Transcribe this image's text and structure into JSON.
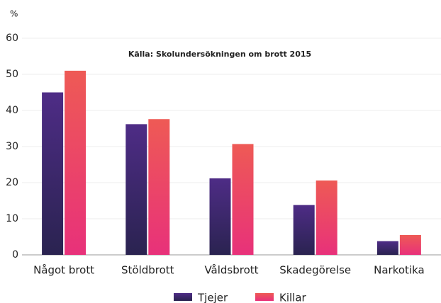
{
  "chart_data": {
    "type": "bar",
    "y_label": "%",
    "subtitle": "Källa: Skolundersökningen om brott 2015",
    "categories": [
      "Något brott",
      "Stöldbrott",
      "Våldsbrott",
      "Skadegörelse",
      "Narkotika"
    ],
    "series": [
      {
        "name": "Tjejer",
        "color": "#4e2c86",
        "values": [
          45,
          36.2,
          21.2,
          13.8,
          3.8
        ]
      },
      {
        "name": "Killar",
        "color": "#ee5a55",
        "values": [
          51,
          37.6,
          30.7,
          20.6,
          5.5
        ]
      }
    ],
    "ylim": [
      0,
      60
    ],
    "yticks": [
      0,
      10,
      20,
      30,
      40,
      50,
      60
    ],
    "grid": true,
    "legend": "bottom"
  }
}
